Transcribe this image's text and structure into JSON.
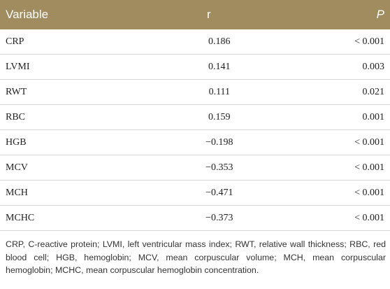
{
  "table": {
    "header": [
      "Variable",
      "r",
      "P"
    ],
    "rows": [
      [
        "CRP",
        "0.186",
        "< 0.001"
      ],
      [
        "LVMI",
        "0.141",
        "0.003"
      ],
      [
        "RWT",
        "0.111",
        "0.021"
      ],
      [
        "RBC",
        "0.159",
        "0.001"
      ],
      [
        "HGB",
        "−0.198",
        "< 0.001"
      ],
      [
        "MCV",
        "−0.353",
        "< 0.001"
      ],
      [
        "MCH",
        "−0.471",
        "< 0.001"
      ],
      [
        "MCHC",
        "−0.373",
        "< 0.001"
      ]
    ]
  },
  "footnote": "CRP, C-reactive protein; LVMI, left ventricular mass index; RWT, relative wall thickness; RBC, red blood cell; HGB, hemoglobin; MCV, mean corpuscular volume; MCH, mean corpuscular hemoglobin; MCHC, mean corpuscular hemoglobin concentration."
}
